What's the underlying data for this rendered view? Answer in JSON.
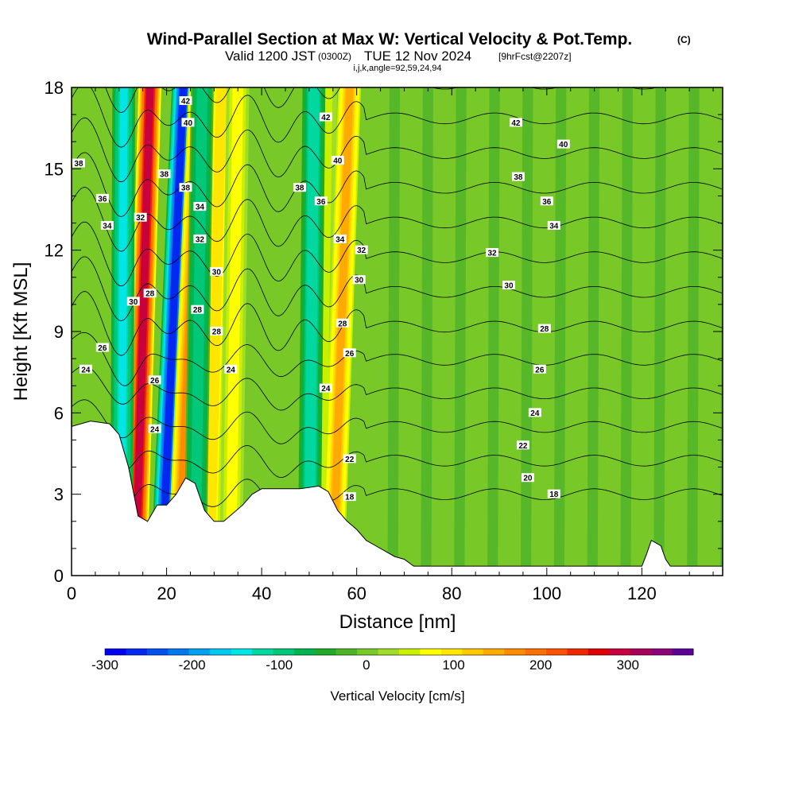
{
  "chart_data": {
    "type": "heatmap",
    "title": "Wind-Parallel Section at Max W: Vertical Velocity & Pot.Temp.",
    "title_mark": "(C)",
    "subtitle_valid": "Valid 1200 JST",
    "subtitle_utc": "(0300Z)",
    "subtitle_date": "TUE 12 Nov 2024",
    "subtitle_fcst": "[9hrFcst@2207z]",
    "subtitle_params": "i,j,k,angle=92,59,24,94",
    "xlabel": "Distance [nm]",
    "ylabel": "Height [Kft MSL]",
    "xlim": [
      0,
      137
    ],
    "ylim": [
      0,
      18
    ],
    "x_ticks": [
      0,
      20,
      40,
      60,
      80,
      100,
      120
    ],
    "x_tick_labels": [
      "0",
      "20",
      "40",
      "60",
      "80",
      "100",
      "120"
    ],
    "y_ticks": [
      0,
      3,
      6,
      9,
      12,
      15,
      18
    ],
    "y_tick_labels": [
      "0",
      "3",
      "6",
      "9",
      "12",
      "15",
      "18"
    ],
    "colorbar": {
      "label": "Vertical Velocity [cm/s]",
      "range": [
        -300,
        375
      ],
      "tick_values": [
        -300,
        -200,
        -100,
        0,
        100,
        200,
        300
      ],
      "tick_labels": [
        "-300",
        "-200",
        "-100",
        "0",
        "100",
        "200",
        "300"
      ],
      "colors": [
        "#0000f0",
        "#0028f0",
        "#0050f0",
        "#0078f0",
        "#00a0f0",
        "#00c8f0",
        "#00e6e6",
        "#00d8a0",
        "#00c878",
        "#00b450",
        "#20aa28",
        "#50b428",
        "#78c828",
        "#a0dc28",
        "#c8f000",
        "#ffff00",
        "#ffe600",
        "#ffc800",
        "#ffaa00",
        "#ff8c00",
        "#ff6e00",
        "#ff5000",
        "#f02800",
        "#dc0000",
        "#c8003c",
        "#a8005a",
        "#8c0078",
        "#5a0096"
      ]
    },
    "terrain": {
      "x": [
        0,
        4,
        8,
        10,
        12,
        14,
        16,
        18,
        20,
        22,
        24,
        26,
        28,
        30,
        32,
        34,
        36,
        38,
        40,
        44,
        48,
        52,
        54,
        56,
        58,
        60,
        62,
        64,
        66,
        68,
        70,
        72,
        80,
        90,
        100,
        110,
        118,
        120,
        121,
        122,
        124,
        125,
        126,
        128,
        137
      ],
      "y": [
        5.5,
        5.7,
        5.6,
        5.2,
        4.0,
        2.2,
        2.0,
        2.6,
        2.6,
        3.0,
        3.6,
        3.4,
        2.4,
        2.0,
        2.0,
        2.3,
        2.6,
        3.0,
        3.2,
        3.2,
        3.2,
        3.3,
        3.1,
        2.4,
        2.0,
        1.7,
        1.3,
        1.1,
        0.9,
        0.7,
        0.6,
        0.35,
        0.35,
        0.35,
        0.35,
        0.35,
        0.35,
        0.35,
        0.8,
        1.3,
        1.1,
        0.6,
        0.35,
        0.35,
        0.35
      ]
    },
    "updraft_bands": [
      {
        "x_bottom": 13.5,
        "x_top": 16.5,
        "w_max": 320
      },
      {
        "x_bottom": 19.0,
        "x_top": 23.5,
        "w_max": -300
      },
      {
        "x_bottom": 22.5,
        "x_top": 27.0,
        "w_max": 190
      },
      {
        "x_bottom": 29.0,
        "x_top": 31.5,
        "w_max": 120
      },
      {
        "x_bottom": 33.5,
        "x_top": 35.0,
        "w_max": 90
      },
      {
        "x_bottom": 52.0,
        "x_top": 53.5,
        "w_max": 70
      },
      {
        "x_bottom": 55.0,
        "x_top": 58.5,
        "w_max": 170
      },
      {
        "x_bottom": 26.0,
        "x_top": 27.5,
        "w_max": -120
      },
      {
        "x_bottom": 50.0,
        "x_top": 51.0,
        "w_max": -150
      },
      {
        "x_bottom": 10.5,
        "x_top": 11.0,
        "w_max": -170
      }
    ],
    "potential_temperature": {
      "contour_levels": [
        18,
        20,
        22,
        24,
        26,
        28,
        30,
        32,
        34,
        36,
        38,
        40,
        42
      ],
      "contour_labels": [
        {
          "text": "42",
          "x": 24,
          "y": 17.5
        },
        {
          "text": "42",
          "x": 53.5,
          "y": 16.9
        },
        {
          "text": "42",
          "x": 93.5,
          "y": 16.7
        },
        {
          "text": "40",
          "x": 24.5,
          "y": 16.7
        },
        {
          "text": "40",
          "x": 56,
          "y": 15.3
        },
        {
          "text": "40",
          "x": 103.5,
          "y": 15.9
        },
        {
          "text": "38",
          "x": 1.5,
          "y": 15.2
        },
        {
          "text": "38",
          "x": 19.5,
          "y": 14.8
        },
        {
          "text": "38",
          "x": 24,
          "y": 14.3
        },
        {
          "text": "38",
          "x": 48,
          "y": 14.3
        },
        {
          "text": "38",
          "x": 94,
          "y": 14.7
        },
        {
          "text": "36",
          "x": 6.5,
          "y": 13.9
        },
        {
          "text": "36",
          "x": 52.5,
          "y": 13.8
        },
        {
          "text": "36",
          "x": 100,
          "y": 13.8
        },
        {
          "text": "34",
          "x": 7.5,
          "y": 12.9
        },
        {
          "text": "34",
          "x": 27,
          "y": 13.6
        },
        {
          "text": "34",
          "x": 56.5,
          "y": 12.4
        },
        {
          "text": "34",
          "x": 101.5,
          "y": 12.9
        },
        {
          "text": "32",
          "x": 14.5,
          "y": 13.2
        },
        {
          "text": "32",
          "x": 27,
          "y": 12.4
        },
        {
          "text": "32",
          "x": 61,
          "y": 12.0
        },
        {
          "text": "32",
          "x": 88.5,
          "y": 11.9
        },
        {
          "text": "30",
          "x": 30.5,
          "y": 11.2
        },
        {
          "text": "30",
          "x": 60.5,
          "y": 10.9
        },
        {
          "text": "30",
          "x": 92,
          "y": 10.7
        },
        {
          "text": "30",
          "x": 13,
          "y": 10.1
        },
        {
          "text": "28",
          "x": 16.5,
          "y": 10.4
        },
        {
          "text": "28",
          "x": 26.5,
          "y": 9.8
        },
        {
          "text": "28",
          "x": 30.5,
          "y": 9.0
        },
        {
          "text": "28",
          "x": 57,
          "y": 9.3
        },
        {
          "text": "28",
          "x": 99.5,
          "y": 9.1
        },
        {
          "text": "26",
          "x": 6.5,
          "y": 8.4
        },
        {
          "text": "26",
          "x": 58.5,
          "y": 8.2
        },
        {
          "text": "26",
          "x": 17.5,
          "y": 7.2
        },
        {
          "text": "26",
          "x": 98.5,
          "y": 7.6
        },
        {
          "text": "24",
          "x": 3,
          "y": 7.6
        },
        {
          "text": "24",
          "x": 33.5,
          "y": 7.6
        },
        {
          "text": "24",
          "x": 53.5,
          "y": 6.9
        },
        {
          "text": "24",
          "x": 17.5,
          "y": 5.4
        },
        {
          "text": "24",
          "x": 97.5,
          "y": 6.0
        },
        {
          "text": "22",
          "x": 58.5,
          "y": 4.3
        },
        {
          "text": "22",
          "x": 95,
          "y": 4.8
        },
        {
          "text": "20",
          "x": 96,
          "y": 3.6
        },
        {
          "text": "18",
          "x": 58.5,
          "y": 2.9
        },
        {
          "text": "18",
          "x": 101.5,
          "y": 3.0
        }
      ]
    }
  }
}
